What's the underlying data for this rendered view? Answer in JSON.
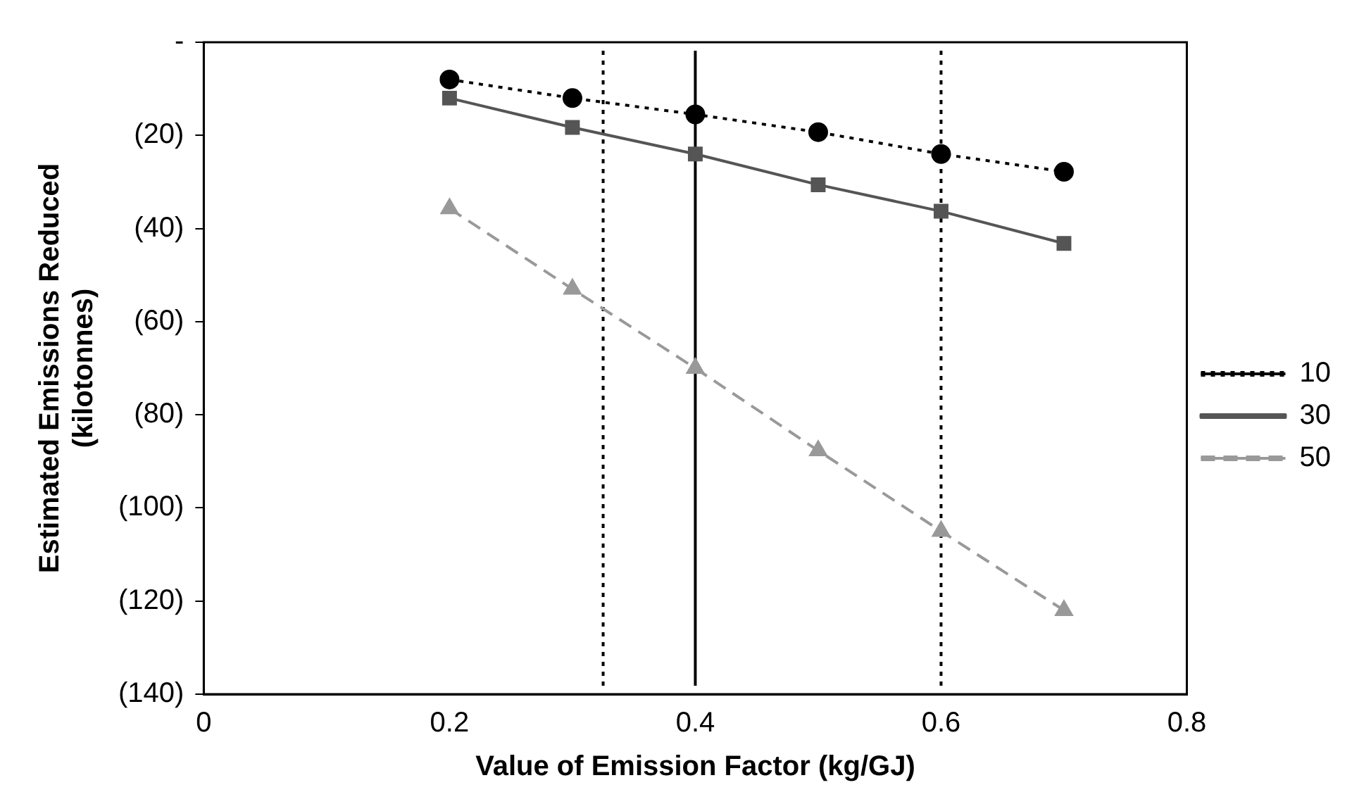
{
  "chart_data": {
    "type": "line",
    "xlabel": "Value of Emission Factor (kg/GJ)",
    "ylabel": "Estimated Emissions Reduced (kilotonnes)",
    "x": [
      0.2,
      0.3,
      0.4,
      0.5,
      0.6,
      0.7
    ],
    "xlim": [
      0,
      0.8
    ],
    "xticks": [
      0,
      0.2,
      0.4,
      0.6,
      0.8
    ],
    "ylim": [
      -140,
      0
    ],
    "yticks": [
      {
        "value": 0,
        "label": "-"
      },
      {
        "value": -20,
        "label": "(20)"
      },
      {
        "value": -40,
        "label": "(40)"
      },
      {
        "value": -60,
        "label": "(60)"
      },
      {
        "value": -80,
        "label": "(80)"
      },
      {
        "value": -100,
        "label": "(100)"
      },
      {
        "value": -120,
        "label": "(120)"
      },
      {
        "value": -140,
        "label": "(140)"
      }
    ],
    "series": [
      {
        "name": "10",
        "color": "#000000",
        "marker": "circle",
        "line_style": "dotted",
        "values": [
          -8,
          -12,
          -15.5,
          -19.3,
          -24,
          -27.8
        ]
      },
      {
        "name": "30",
        "color": "#555555",
        "marker": "square",
        "line_style": "solid",
        "values": [
          -12,
          -18.3,
          -24,
          -30.6,
          -36.3,
          -43.2
        ]
      },
      {
        "name": "50",
        "color": "#999999",
        "marker": "triangle",
        "line_style": "dashed",
        "values": [
          -35.7,
          -53,
          -70,
          -87.7,
          -105,
          -122
        ]
      }
    ],
    "ref_lines": [
      {
        "axis": "x",
        "value": 0.325,
        "color": "#000000",
        "line_style": "dotted"
      },
      {
        "axis": "x",
        "value": 0.4,
        "color": "#000000",
        "line_style": "solid"
      },
      {
        "axis": "x",
        "value": 0.6,
        "color": "#000000",
        "line_style": "dotted"
      }
    ],
    "grid": false,
    "legend": "right"
  }
}
